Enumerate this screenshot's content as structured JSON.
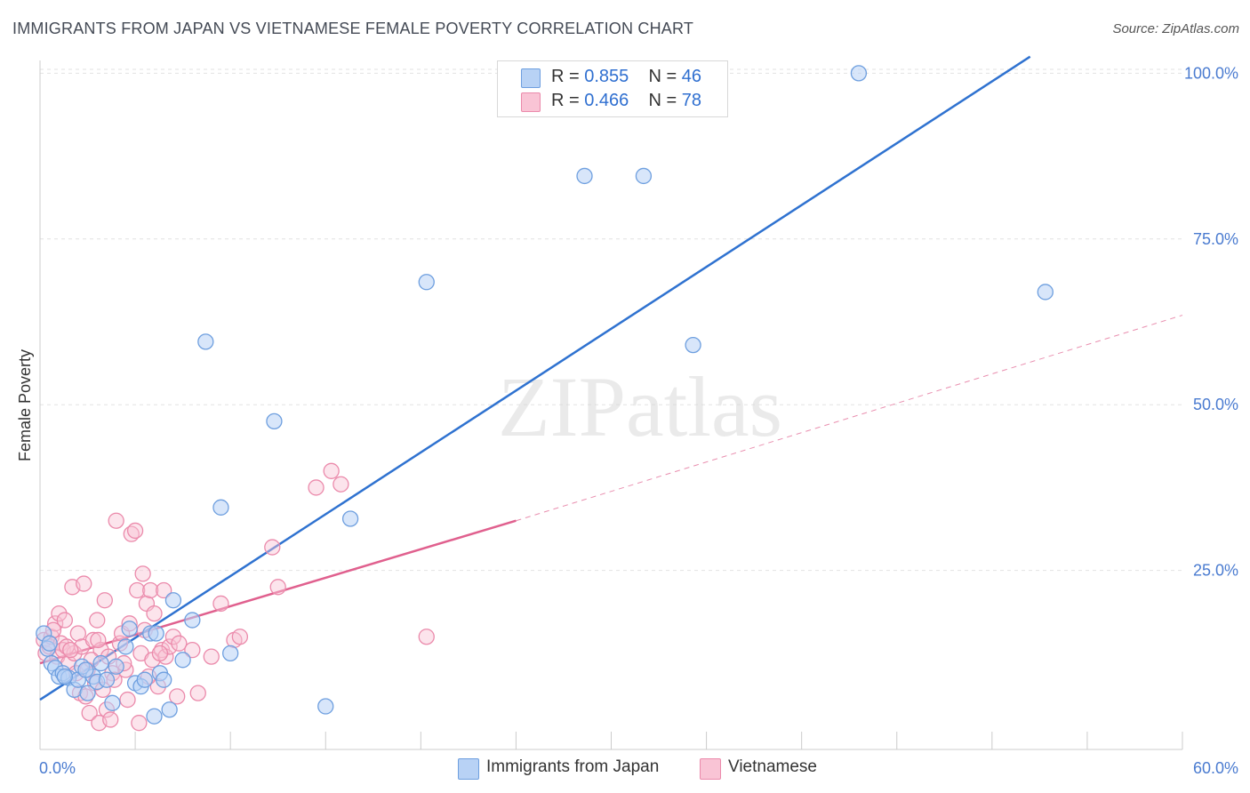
{
  "title": "IMMIGRANTS FROM JAPAN VS VIETNAMESE FEMALE POVERTY CORRELATION CHART",
  "source": "Source: ZipAtlas.com",
  "watermark": "ZIPatlas",
  "colors": {
    "japan_fill": "#b8d2f5",
    "japan_stroke": "#6e9fdf",
    "japan_line": "#2f72d0",
    "viet_fill": "#f9c4d5",
    "viet_stroke": "#eb8aab",
    "viet_line": "#e0608e",
    "axis_text": "#4a7bd0"
  },
  "legend": {
    "japan": {
      "r_label": "R =",
      "r_value": "0.855",
      "n_label": "N =",
      "n_value": "46"
    },
    "viet": {
      "r_label": "R =",
      "r_value": "0.466",
      "n_label": "N =",
      "n_value": "78"
    }
  },
  "bottom_legend": {
    "japan": "Immigrants from Japan",
    "viet": "Vietnamese"
  },
  "chart_data": {
    "type": "scatter",
    "title": "IMMIGRANTS FROM JAPAN VS VIETNAMESE FEMALE POVERTY CORRELATION CHART",
    "xlabel": "",
    "ylabel": "Female Poverty",
    "xlim": [
      0,
      60
    ],
    "ylim": [
      -2,
      103
    ],
    "x_ticks": [
      "0.0%",
      "60.0%"
    ],
    "y_ticks": [
      {
        "value": 25,
        "label": "25.0%"
      },
      {
        "value": 50,
        "label": "50.0%"
      },
      {
        "value": 75,
        "label": "75.0%"
      },
      {
        "value": 100,
        "label": "100.0%"
      }
    ],
    "grid": true,
    "legend_position": "top-center",
    "series": [
      {
        "name": "Immigrants from Japan",
        "stats": {
          "R": 0.855,
          "N": 46
        },
        "trend": {
          "x": [
            0,
            52
          ],
          "y": [
            5.5,
            102.5
          ]
        },
        "points": [
          [
            0.2,
            15.5
          ],
          [
            0.4,
            13.2
          ],
          [
            0.6,
            11.0
          ],
          [
            0.8,
            10.3
          ],
          [
            1.0,
            9.0
          ],
          [
            1.2,
            9.5
          ],
          [
            1.5,
            8.8
          ],
          [
            1.8,
            7.0
          ],
          [
            2.0,
            8.5
          ],
          [
            2.2,
            10.5
          ],
          [
            2.5,
            6.5
          ],
          [
            2.8,
            9.0
          ],
          [
            3.0,
            8.2
          ],
          [
            3.2,
            11.0
          ],
          [
            3.5,
            8.5
          ],
          [
            3.8,
            5.0
          ],
          [
            4.0,
            10.5
          ],
          [
            4.5,
            13.5
          ],
          [
            4.7,
            16.2
          ],
          [
            5.0,
            8.0
          ],
          [
            5.3,
            7.5
          ],
          [
            5.5,
            8.5
          ],
          [
            5.8,
            15.5
          ],
          [
            6.0,
            3.0
          ],
          [
            6.3,
            9.5
          ],
          [
            6.5,
            8.5
          ],
          [
            6.8,
            4.0
          ],
          [
            7.0,
            20.5
          ],
          [
            7.5,
            11.5
          ],
          [
            8.0,
            17.5
          ],
          [
            8.7,
            59.5
          ],
          [
            9.5,
            34.5
          ],
          [
            10.0,
            12.5
          ],
          [
            12.3,
            47.5
          ],
          [
            15.0,
            4.5
          ],
          [
            16.3,
            32.8
          ],
          [
            20.3,
            68.5
          ],
          [
            28.6,
            84.5
          ],
          [
            31.7,
            84.5
          ],
          [
            34.3,
            59.0
          ],
          [
            43.0,
            100.0
          ],
          [
            52.8,
            67.0
          ],
          [
            0.5,
            14.0
          ],
          [
            1.3,
            9.0
          ],
          [
            2.4,
            10.0
          ],
          [
            6.1,
            15.5
          ]
        ]
      },
      {
        "name": "Vietnamese",
        "stats": {
          "R": 0.466,
          "N": 78
        },
        "trend": {
          "x": [
            0,
            25
          ],
          "y": [
            11.0,
            32.5
          ]
        },
        "trend_dashed": {
          "x": [
            25,
            60
          ],
          "y": [
            32.5,
            63.5
          ]
        },
        "points": [
          [
            0.2,
            14.5
          ],
          [
            0.3,
            12.5
          ],
          [
            0.5,
            13.5
          ],
          [
            0.6,
            15.0
          ],
          [
            0.8,
            17.0
          ],
          [
            0.9,
            12.0
          ],
          [
            1.0,
            18.5
          ],
          [
            1.1,
            14.0
          ],
          [
            1.2,
            13.0
          ],
          [
            1.3,
            17.5
          ],
          [
            1.5,
            11.0
          ],
          [
            1.7,
            22.5
          ],
          [
            1.8,
            12.5
          ],
          [
            1.9,
            9.5
          ],
          [
            2.0,
            15.5
          ],
          [
            2.1,
            6.5
          ],
          [
            2.2,
            13.5
          ],
          [
            2.3,
            23.0
          ],
          [
            2.4,
            6.0
          ],
          [
            2.5,
            10.0
          ],
          [
            2.6,
            3.5
          ],
          [
            2.8,
            14.5
          ],
          [
            2.9,
            8.0
          ],
          [
            3.0,
            17.5
          ],
          [
            3.1,
            2.0
          ],
          [
            3.2,
            13.0
          ],
          [
            3.3,
            7.0
          ],
          [
            3.4,
            20.5
          ],
          [
            3.5,
            4.0
          ],
          [
            3.6,
            12.0
          ],
          [
            3.7,
            2.5
          ],
          [
            3.8,
            9.5
          ],
          [
            3.9,
            8.5
          ],
          [
            4.0,
            32.5
          ],
          [
            4.2,
            14.0
          ],
          [
            4.3,
            15.5
          ],
          [
            4.5,
            10.0
          ],
          [
            4.6,
            5.5
          ],
          [
            4.7,
            17.0
          ],
          [
            4.8,
            30.5
          ],
          [
            5.0,
            31.0
          ],
          [
            5.1,
            22.0
          ],
          [
            5.2,
            2.0
          ],
          [
            5.3,
            12.5
          ],
          [
            5.4,
            24.5
          ],
          [
            5.5,
            16.0
          ],
          [
            5.6,
            20.0
          ],
          [
            5.8,
            22.0
          ],
          [
            5.9,
            11.5
          ],
          [
            6.0,
            18.5
          ],
          [
            6.2,
            7.5
          ],
          [
            6.4,
            13.0
          ],
          [
            6.5,
            22.0
          ],
          [
            6.6,
            12.0
          ],
          [
            6.8,
            13.5
          ],
          [
            7.0,
            15.0
          ],
          [
            7.2,
            6.0
          ],
          [
            7.3,
            14.0
          ],
          [
            8.0,
            13.0
          ],
          [
            8.3,
            6.5
          ],
          [
            9.0,
            12.0
          ],
          [
            9.5,
            20.0
          ],
          [
            10.2,
            14.5
          ],
          [
            10.5,
            15.0
          ],
          [
            12.2,
            28.5
          ],
          [
            12.5,
            22.5
          ],
          [
            14.5,
            37.5
          ],
          [
            15.3,
            40.0
          ],
          [
            15.8,
            38.0
          ],
          [
            20.3,
            15.0
          ],
          [
            1.4,
            13.5
          ],
          [
            2.7,
            11.5
          ],
          [
            3.05,
            14.5
          ],
          [
            4.4,
            11.0
          ],
          [
            5.7,
            9.0
          ],
          [
            0.7,
            16.0
          ],
          [
            1.6,
            13.0
          ],
          [
            6.3,
            12.5
          ]
        ]
      }
    ]
  }
}
